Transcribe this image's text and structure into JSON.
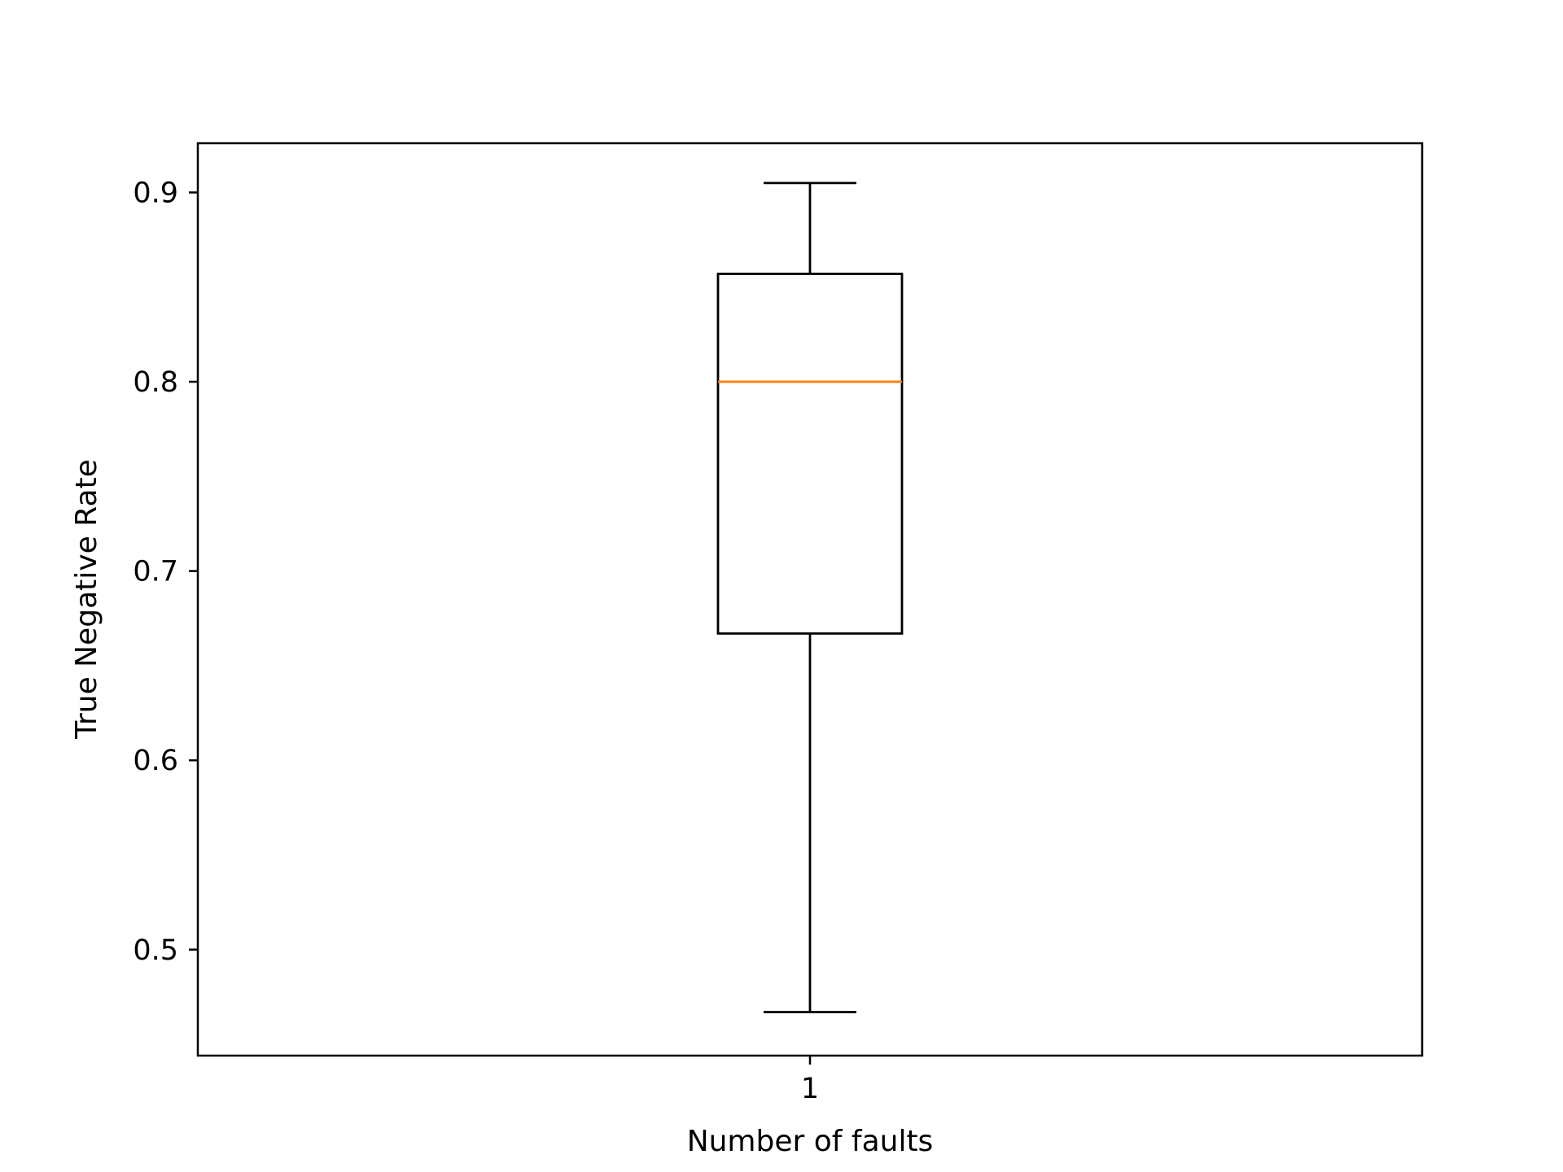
{
  "chart_data": {
    "type": "box",
    "title": "",
    "xlabel": "Number of faults",
    "ylabel": "True Negative Rate",
    "categories": [
      "1"
    ],
    "boxes": [
      {
        "category": "1",
        "whisker_low": 0.467,
        "q1": 0.667,
        "median": 0.8,
        "q3": 0.857,
        "whisker_high": 0.905
      }
    ],
    "ylim": [
      0.444,
      0.926
    ],
    "yticks": [
      0.5,
      0.6,
      0.7,
      0.8,
      0.9
    ],
    "ytick_labels": [
      "0.5",
      "0.6",
      "0.7",
      "0.8",
      "0.9"
    ],
    "grid": false,
    "colors": {
      "box": "#000000",
      "median": "#ff7f0e",
      "background": "#ffffff"
    }
  }
}
